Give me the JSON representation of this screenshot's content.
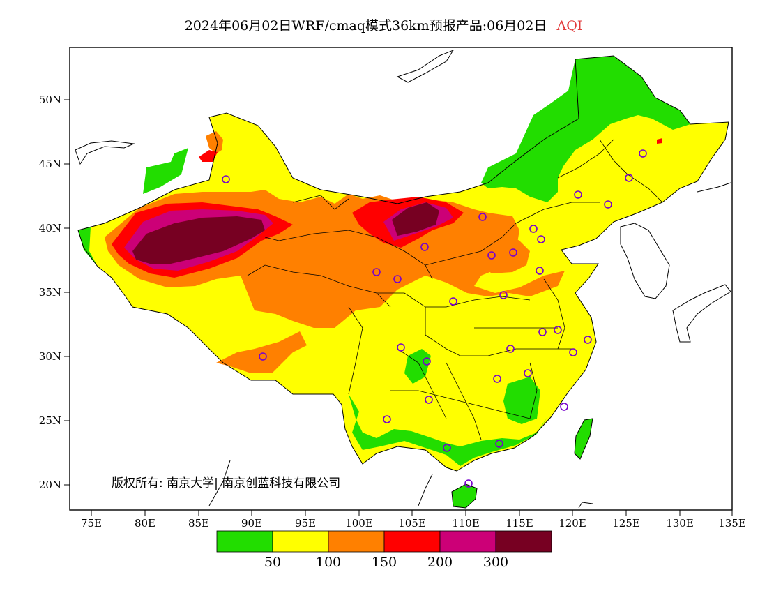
{
  "title": {
    "main": "2024年06月02日WRF/cmaq模式36km预报产品:06月02日",
    "variable": "AQI"
  },
  "axes": {
    "x_ticks": [
      "75E",
      "80E",
      "85E",
      "90E",
      "95E",
      "100E",
      "105E",
      "110E",
      "115E",
      "120E",
      "125E",
      "130E",
      "135E"
    ],
    "y_ticks": [
      "50N",
      "45N",
      "40N",
      "35N",
      "30N",
      "25N",
      "20N"
    ]
  },
  "copyright": "版权所有: 南京大学| 南京创蓝科技有限公司",
  "legend": {
    "labels": [
      "50",
      "100",
      "150",
      "200",
      "300"
    ],
    "colors": [
      "#22dd00",
      "#ffff00",
      "#ff8000",
      "#ff0000",
      "#cc0077",
      "#770022"
    ]
  },
  "colors": {
    "good": "#22dd00",
    "moderate": "#ffff00",
    "usg": "#ff8000",
    "unhealthy": "#ff0000",
    "very_unhealthy": "#cc0077",
    "hazardous": "#770022",
    "station_marker": "#7700cc"
  }
}
